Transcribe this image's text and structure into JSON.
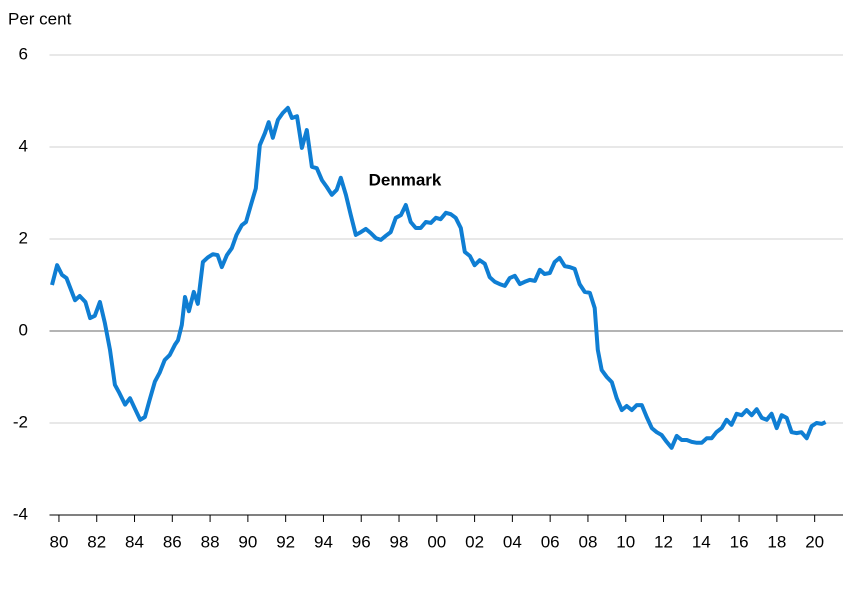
{
  "chart_data": {
    "type": "line",
    "y_label": "Per cent",
    "annotation": "Denmark",
    "x": [
      1979.63,
      1979.9,
      1980.16,
      1980.4,
      1980.85,
      1981.1,
      1981.4,
      1981.65,
      1981.9,
      1982.17,
      1982.43,
      1982.7,
      1982.96,
      1983.2,
      1983.5,
      1983.76,
      1984.0,
      1984.3,
      1984.55,
      1984.8,
      1985.08,
      1985.34,
      1985.6,
      1985.87,
      1986.14,
      1986.3,
      1986.5,
      1986.67,
      1986.88,
      1987.14,
      1987.35,
      1987.62,
      1987.88,
      1988.15,
      1988.4,
      1988.62,
      1988.89,
      1989.15,
      1989.4,
      1989.68,
      1989.9,
      1990.16,
      1990.42,
      1990.63,
      1990.9,
      1991.1,
      1991.32,
      1991.59,
      1991.85,
      1992.12,
      1992.33,
      1992.6,
      1992.86,
      1993.12,
      1993.39,
      1993.65,
      1993.92,
      1994.18,
      1994.44,
      1994.7,
      1994.92,
      1995.19,
      1995.45,
      1995.71,
      1995.98,
      1996.24,
      1996.5,
      1996.77,
      1997.04,
      1997.3,
      1997.56,
      1997.83,
      1998.1,
      1998.36,
      1998.62,
      1998.89,
      1999.15,
      1999.42,
      1999.68,
      1999.95,
      2000.2,
      2000.48,
      2000.74,
      2001.0,
      2001.27,
      2001.48,
      2001.75,
      2002.0,
      2002.27,
      2002.54,
      2002.8,
      2003.07,
      2003.33,
      2003.6,
      2003.86,
      2004.13,
      2004.4,
      2004.66,
      2004.92,
      2005.19,
      2005.45,
      2005.7,
      2005.98,
      2006.24,
      2006.5,
      2006.77,
      2007.04,
      2007.3,
      2007.56,
      2007.83,
      2008.1,
      2008.36,
      2008.52,
      2008.73,
      2009.0,
      2009.26,
      2009.52,
      2009.79,
      2010.05,
      2010.32,
      2010.58,
      2010.85,
      2011.11,
      2011.38,
      2011.64,
      2011.9,
      2012.17,
      2012.43,
      2012.7,
      2012.96,
      2013.23,
      2013.49,
      2013.76,
      2014.02,
      2014.29,
      2014.55,
      2014.8,
      2015.08,
      2015.34,
      2015.6,
      2015.87,
      2016.14,
      2016.4,
      2016.67,
      2016.93,
      2017.2,
      2017.46,
      2017.72,
      2017.99,
      2018.25,
      2018.52,
      2018.78,
      2019.05,
      2019.3,
      2019.58,
      2019.84,
      2020.1,
      2020.37,
      2020.58
    ],
    "series": [
      {
        "name": "Denmark",
        "color": "#0f7ed3",
        "values": [
          1.0,
          1.43,
          1.22,
          1.15,
          0.67,
          0.76,
          0.63,
          0.28,
          0.33,
          0.63,
          0.17,
          -0.41,
          -1.17,
          -1.35,
          -1.6,
          -1.46,
          -1.67,
          -1.93,
          -1.87,
          -1.5,
          -1.1,
          -0.9,
          -0.63,
          -0.52,
          -0.3,
          -0.2,
          0.13,
          0.74,
          0.43,
          0.85,
          0.59,
          1.5,
          1.6,
          1.67,
          1.65,
          1.39,
          1.65,
          1.8,
          2.09,
          2.3,
          2.37,
          2.74,
          3.1,
          4.04,
          4.3,
          4.54,
          4.2,
          4.59,
          4.74,
          4.85,
          4.63,
          4.67,
          3.98,
          4.37,
          3.57,
          3.54,
          3.28,
          3.13,
          2.96,
          3.07,
          3.33,
          2.96,
          2.52,
          2.09,
          2.15,
          2.22,
          2.13,
          2.02,
          1.98,
          2.07,
          2.15,
          2.46,
          2.52,
          2.74,
          2.37,
          2.24,
          2.24,
          2.37,
          2.35,
          2.46,
          2.43,
          2.57,
          2.54,
          2.46,
          2.24,
          1.72,
          1.63,
          1.43,
          1.54,
          1.46,
          1.17,
          1.07,
          1.02,
          0.98,
          1.15,
          1.2,
          1.02,
          1.07,
          1.11,
          1.09,
          1.33,
          1.24,
          1.26,
          1.5,
          1.59,
          1.41,
          1.39,
          1.35,
          1.02,
          0.85,
          0.83,
          0.5,
          -0.41,
          -0.85,
          -1.0,
          -1.11,
          -1.46,
          -1.72,
          -1.63,
          -1.72,
          -1.61,
          -1.61,
          -1.87,
          -2.11,
          -2.2,
          -2.26,
          -2.41,
          -2.54,
          -2.28,
          -2.37,
          -2.37,
          -2.41,
          -2.43,
          -2.43,
          -2.33,
          -2.33,
          -2.2,
          -2.11,
          -1.93,
          -2.04,
          -1.8,
          -1.83,
          -1.72,
          -1.83,
          -1.7,
          -1.89,
          -1.93,
          -1.8,
          -2.11,
          -1.83,
          -1.89,
          -2.2,
          -2.22,
          -2.2,
          -2.33,
          -2.07,
          -2.0,
          -2.02,
          -1.98
        ]
      }
    ],
    "xlim": [
      1979.5,
      2021.5
    ],
    "xticks": [
      {
        "value": 1980,
        "label": "80"
      },
      {
        "value": 1982,
        "label": "82"
      },
      {
        "value": 1984,
        "label": "84"
      },
      {
        "value": 1986,
        "label": "86"
      },
      {
        "value": 1988,
        "label": "88"
      },
      {
        "value": 1990,
        "label": "90"
      },
      {
        "value": 1992,
        "label": "92"
      },
      {
        "value": 1994,
        "label": "94"
      },
      {
        "value": 1996,
        "label": "96"
      },
      {
        "value": 1998,
        "label": "98"
      },
      {
        "value": 2000,
        "label": "00"
      },
      {
        "value": 2002,
        "label": "02"
      },
      {
        "value": 2004,
        "label": "04"
      },
      {
        "value": 2006,
        "label": "06"
      },
      {
        "value": 2008,
        "label": "08"
      },
      {
        "value": 2010,
        "label": "10"
      },
      {
        "value": 2012,
        "label": "12"
      },
      {
        "value": 2014,
        "label": "14"
      },
      {
        "value": 2016,
        "label": "16"
      },
      {
        "value": 2018,
        "label": "18"
      },
      {
        "value": 2020,
        "label": "20"
      }
    ],
    "ylim": [
      -4,
      6
    ],
    "yticks": [
      -4,
      -2,
      0,
      2,
      4,
      6
    ],
    "grid": true
  }
}
